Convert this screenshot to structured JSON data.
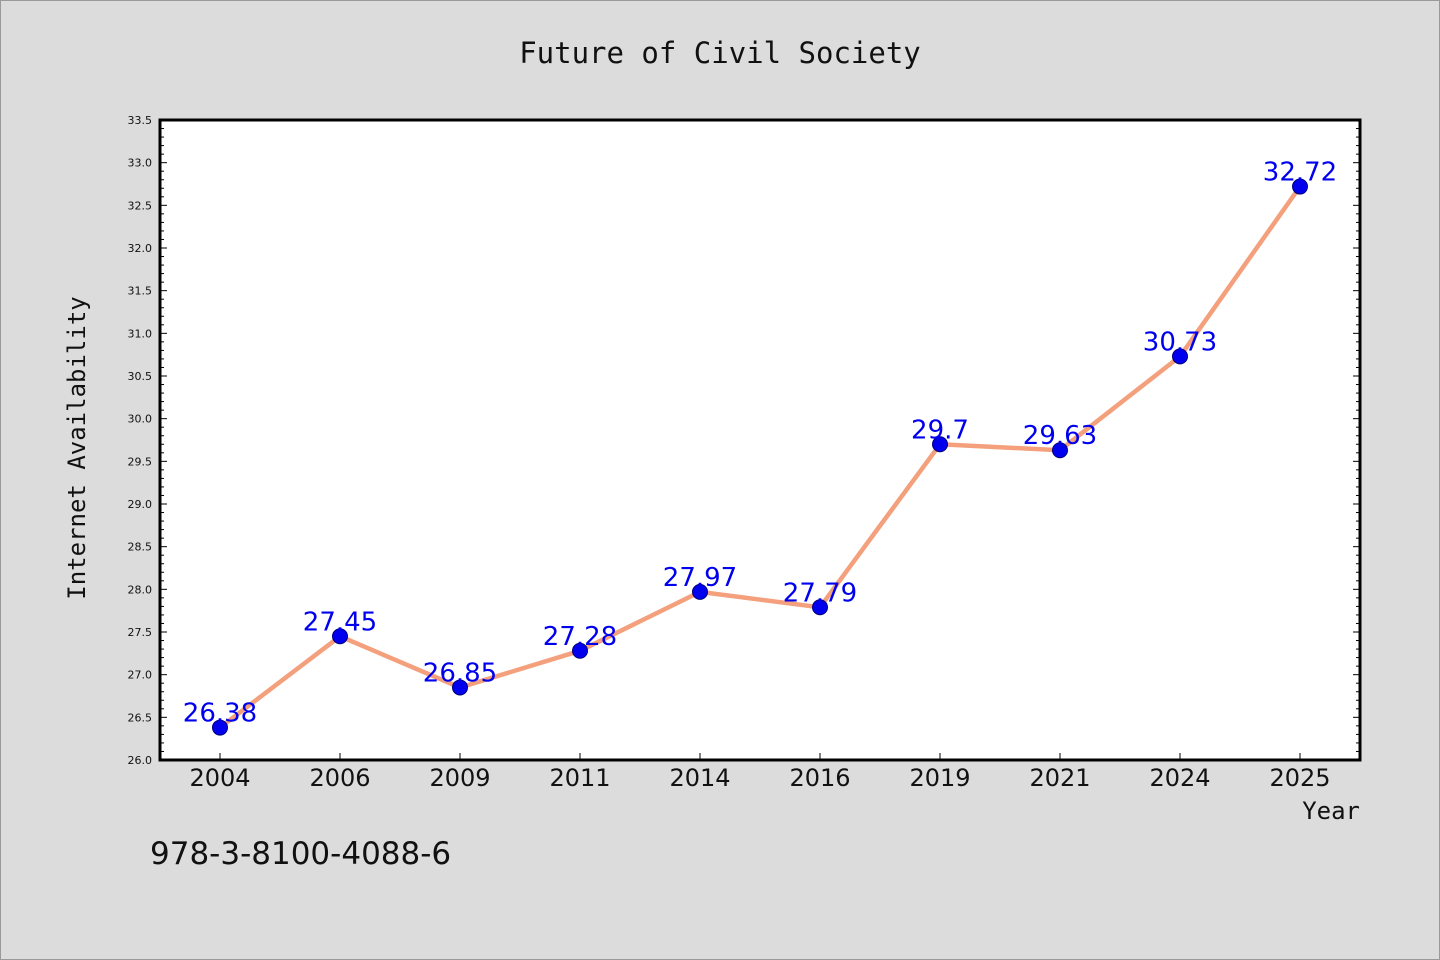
{
  "chart_data": {
    "type": "line",
    "title": "Future of Civil Society",
    "xlabel": "Year",
    "ylabel": "Internet Availability",
    "categories": [
      "2004",
      "2006",
      "2009",
      "2011",
      "2014",
      "2016",
      "2019",
      "2021",
      "2024",
      "2025"
    ],
    "values": [
      26.38,
      27.45,
      26.85,
      27.28,
      27.97,
      27.79,
      29.7,
      29.63,
      30.73,
      32.72
    ],
    "data_labels": [
      "26.38",
      "27.45",
      "26.85",
      "27.28",
      "27.97",
      "27.79",
      "29.7",
      "29.63",
      "30.73",
      "32.72"
    ],
    "ylim": [
      26.0,
      33.5
    ],
    "yticks": [
      "26.0",
      "26.5",
      "27.0",
      "27.5",
      "28.0",
      "28.5",
      "29.0",
      "29.5",
      "30.0",
      "30.5",
      "31.0",
      "31.5",
      "32.0",
      "32.5",
      "33.0",
      "33.5"
    ],
    "grid": false,
    "legend": "none",
    "colors": {
      "line": "#f4a07c",
      "marker": "#0000ee",
      "data_label": "#0000ee",
      "plot_background": "#ffffff",
      "figure_background": "#dcdcdc"
    }
  },
  "footnote": "978-3-8100-4088-6"
}
